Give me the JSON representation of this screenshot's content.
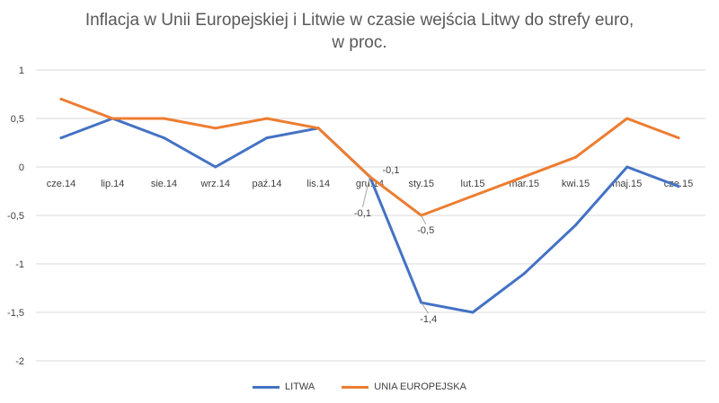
{
  "chart_data": {
    "type": "line",
    "title": "Inflacja w Unii Europejskiej i Litwie w czasie wejścia Litwy do strefy euro,",
    "subtitle": "w proc.",
    "categories": [
      "cze.14",
      "lip.14",
      "sie.14",
      "wrz.14",
      "paź.14",
      "lis.14",
      "gru.14",
      "sty.15",
      "lut.15",
      "mar.15",
      "kwi.15",
      "maj.15",
      "cze.15"
    ],
    "series": [
      {
        "name": "LITWA",
        "color": "#4472C4",
        "values": [
          0.3,
          0.5,
          0.3,
          0.0,
          0.3,
          0.4,
          -0.1,
          -1.4,
          -1.5,
          -1.1,
          -0.6,
          0.0,
          -0.2
        ]
      },
      {
        "name": "UNIA EUROPEJSKA",
        "color": "#ED7D31",
        "values": [
          0.7,
          0.5,
          0.5,
          0.4,
          0.5,
          0.4,
          -0.1,
          -0.5,
          -0.3,
          -0.1,
          0.1,
          0.5,
          0.3
        ]
      }
    ],
    "yticks": [
      "1",
      "0,5",
      "0",
      "-0,5",
      "-1",
      "-1,5",
      "-2"
    ],
    "ytick_values": [
      1,
      0.5,
      0,
      -0.5,
      -1,
      -1.5,
      -2
    ],
    "ylim": [
      -2,
      1
    ],
    "grid": true,
    "legend": "bottom",
    "data_labels": [
      {
        "series": 1,
        "index": 6,
        "text": "-0,1"
      },
      {
        "series": 0,
        "index": 6,
        "text": "-0,1"
      },
      {
        "series": 1,
        "index": 7,
        "text": "-0,5"
      },
      {
        "series": 0,
        "index": 7,
        "text": "-1,4"
      }
    ]
  }
}
